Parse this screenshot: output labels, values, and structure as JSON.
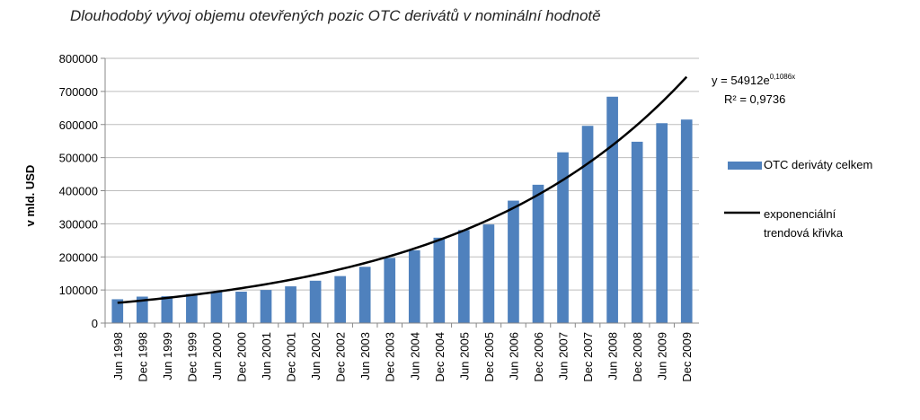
{
  "title": "Dlouhodobý vývoj objemu otevřených pozic OTC derivátů v nominální hodnotě",
  "chart_data": {
    "type": "bar",
    "ylabel": "v mld. USD",
    "ylim": [
      0,
      800000
    ],
    "yticks": [
      "0",
      "100000",
      "200000",
      "300000",
      "400000",
      "500000",
      "600000",
      "700000",
      "800000"
    ],
    "grid": true,
    "legend_position": "right",
    "categories": [
      "Jun 1998",
      "Dec 1998",
      "Jun 1999",
      "Dec 1999",
      "Jun 2000",
      "Dec 2000",
      "Jun 2001",
      "Dec 2001",
      "Jun 2002",
      "Dec 2002",
      "Jun 2003",
      "Dec 2003",
      "Jun 2004",
      "Dec 2004",
      "Jun 2005",
      "Dec 2005",
      "Jun 2006",
      "Dec 2006",
      "Jun 2007",
      "Dec 2007",
      "Jun 2008",
      "Dec 2008",
      "Jun 2009",
      "Dec 2009"
    ],
    "series": [
      {
        "name": "OTC deriváty celkem",
        "type": "bar",
        "color": "#4f81bd",
        "values": [
          72000,
          80000,
          81000,
          88000,
          94000,
          95000,
          100000,
          111000,
          128000,
          142000,
          170000,
          197000,
          220000,
          258000,
          281000,
          298000,
          370000,
          418000,
          516000,
          596000,
          684000,
          548000,
          604000,
          615000
        ]
      },
      {
        "name": "exponenciální trendová křivka",
        "type": "line",
        "color": "#000000",
        "formula": {
          "a": 54912,
          "b": 0.1086
        }
      }
    ],
    "annotations": {
      "equation_prefix": "y = 54912e",
      "equation_exponent": "0,1086x",
      "r_squared": "R² = 0,9736"
    }
  }
}
